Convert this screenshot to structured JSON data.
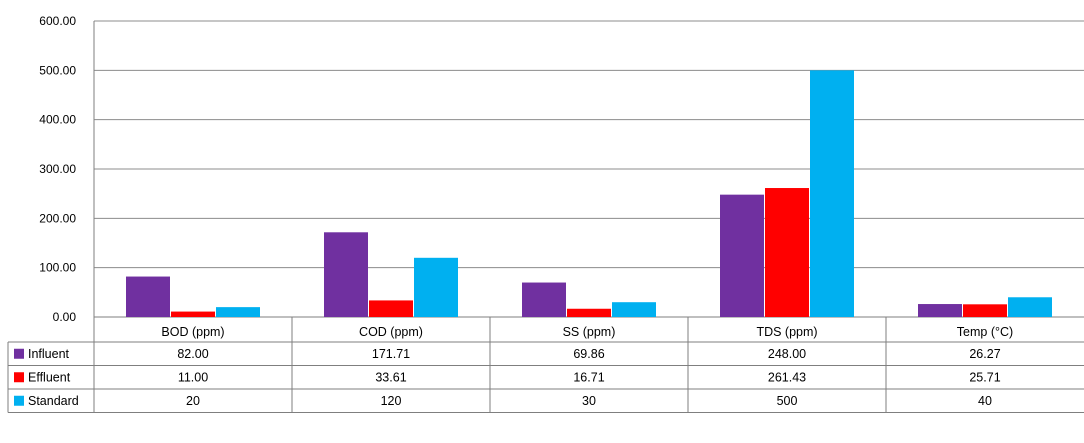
{
  "chart_data": {
    "type": "bar",
    "categories": [
      "BOD (ppm)",
      "COD (ppm)",
      "SS (ppm)",
      "TDS (ppm)",
      "Temp (°C)"
    ],
    "series": [
      {
        "name": "Influent",
        "color": "#7030A0",
        "values": [
          82.0,
          171.71,
          69.86,
          248.0,
          26.27
        ],
        "table_values": [
          "82.00",
          "171.71",
          "69.86",
          "248.00",
          "26.27"
        ]
      },
      {
        "name": "Effluent",
        "color": "#FF0000",
        "values": [
          11.0,
          33.61,
          16.71,
          261.43,
          25.71
        ],
        "table_values": [
          "11.00",
          "33.61",
          "16.71",
          "261.43",
          "25.71"
        ]
      },
      {
        "name": "Standard",
        "color": "#00B0F0",
        "values": [
          20,
          120,
          30,
          500,
          40
        ],
        "table_values": [
          "20",
          "120",
          "30",
          "500",
          "40"
        ]
      }
    ],
    "ylim": [
      0,
      600
    ],
    "yticks": [
      "0.00",
      "100.00",
      "200.00",
      "300.00",
      "400.00",
      "500.00",
      "600.00"
    ],
    "grid": true,
    "legend": "data-table-left"
  }
}
